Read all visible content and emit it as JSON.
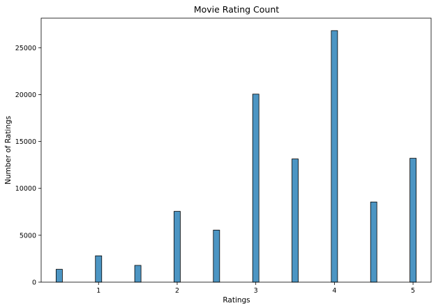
{
  "chart_data": {
    "type": "bar",
    "title": "Movie Rating Count",
    "xlabel": "Ratings",
    "ylabel": "Number of Ratings",
    "x": [
      0.5,
      1.0,
      1.5,
      2.0,
      2.5,
      3.0,
      3.5,
      4.0,
      4.5,
      5.0
    ],
    "values": [
      1370,
      2810,
      1790,
      7550,
      5550,
      20050,
      13140,
      26820,
      8550,
      13210
    ],
    "xlim": [
      0.27,
      5.23
    ],
    "ylim": [
      0,
      28150
    ],
    "xticks": [
      "1",
      "2",
      "3",
      "4",
      "5"
    ],
    "xtick_values": [
      1,
      2,
      3,
      4,
      5
    ],
    "yticks": [
      "0",
      "5000",
      "10000",
      "15000",
      "20000",
      "25000"
    ],
    "ytick_values": [
      0,
      5000,
      10000,
      15000,
      20000,
      25000
    ],
    "grid": false,
    "bar_color": "#4c95c3"
  }
}
